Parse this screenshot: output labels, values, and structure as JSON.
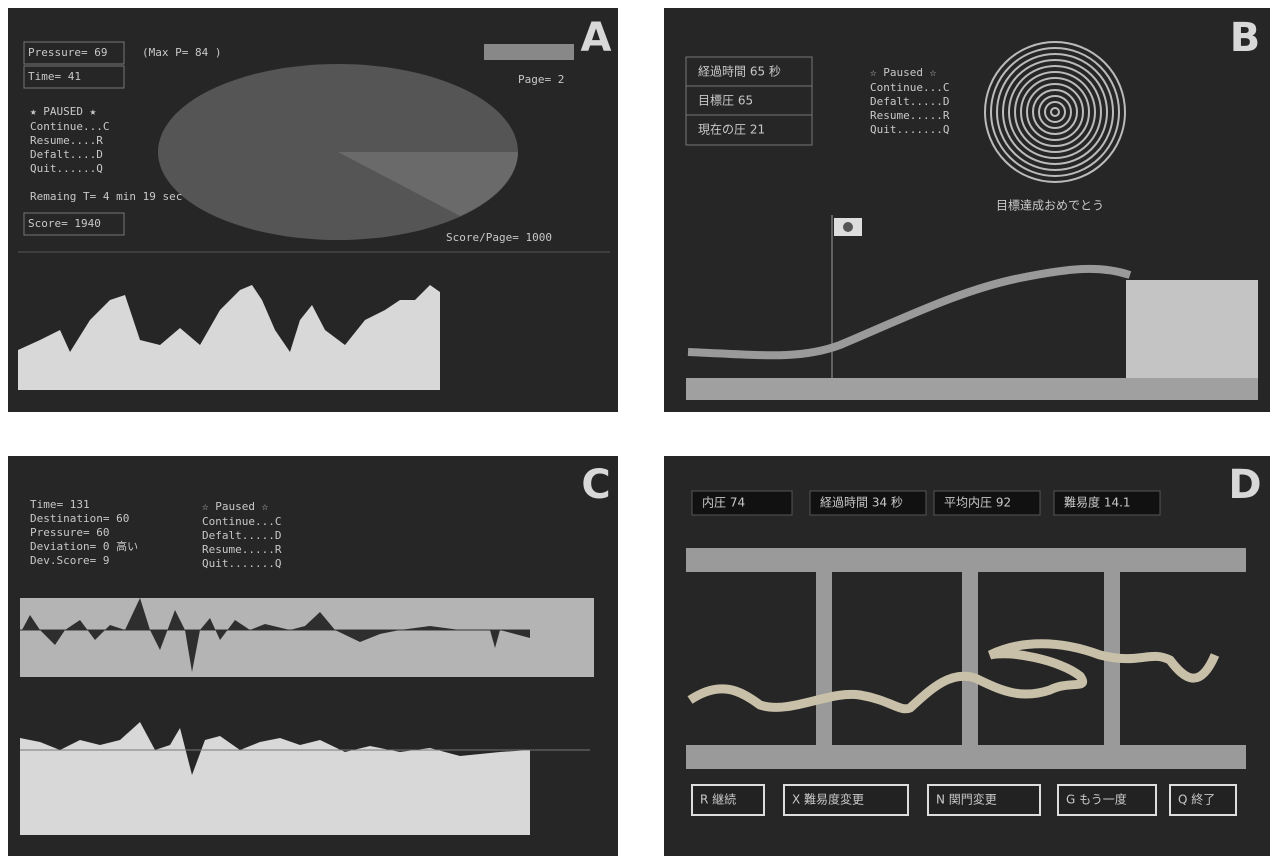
{
  "panels": [
    {
      "label": "A",
      "status": [
        "Pressure= 69",
        "(Max P= 84 )",
        "Time= 41",
        "Page= 2"
      ],
      "menu_title": "★ PAUSED ★",
      "menu": [
        "Continue...C",
        "Resume....R",
        "Defalt....D",
        "Quit......Q"
      ],
      "remaining": "Remaing T= 4 min 19 sec",
      "score": "Score= 1940",
      "score_per_page": "Score/Page= 1000"
    },
    {
      "label": "B",
      "status": [
        "経過時間 65 秒",
        "目標圧 65",
        "現在の圧 21"
      ],
      "menu_title": "☆ Paused ☆",
      "menu": [
        "Continue...C",
        "Defalt.....D",
        "Resume.....R",
        "Quit.......Q"
      ],
      "message": "目標達成おめでとう"
    },
    {
      "label": "C",
      "status": [
        "Time= 131",
        "Destination= 60",
        "Pressure= 60",
        "Deviation= 0 高い",
        "Dev.Score= 9"
      ],
      "menu_title": "☆ Paused ☆",
      "menu": [
        "Continue...C",
        "Defalt.....D",
        "Resume.....R",
        "Quit.......Q"
      ]
    },
    {
      "label": "D",
      "status": [
        "内圧 74",
        "経過時間 34 秒",
        "平均内圧 92",
        "難易度 14.1"
      ],
      "buttons": [
        "R 継続",
        "X 難易度変更",
        "N 関門変更",
        "G もう一度",
        "Q 終了"
      ]
    }
  ]
}
